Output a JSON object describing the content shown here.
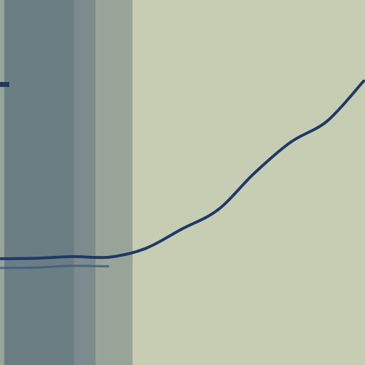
{
  "chart_data": {
    "type": "line",
    "title": "",
    "xlabel": "",
    "ylabel": "",
    "grid": false,
    "legend": "none",
    "colors": {
      "background": "#c7cdb3",
      "band_dark": "#6b7e84",
      "band_mid": "#7c8c8e",
      "band_light": "#98a497",
      "line_main": "#1d3a66",
      "line_shadow": "#3d5a7a"
    },
    "series": [
      {
        "x": [
          0,
          10,
          20,
          30,
          40,
          50,
          60,
          70,
          80,
          90,
          100
        ],
        "y": [
          2.4,
          2.6,
          3.2,
          3.0,
          6.2,
          13.4,
          20.6,
          34.2,
          45.7,
          53.5,
          68.3
        ]
      }
    ],
    "xlim": [
      0,
      100
    ],
    "ylim": [
      0,
      100
    ]
  }
}
